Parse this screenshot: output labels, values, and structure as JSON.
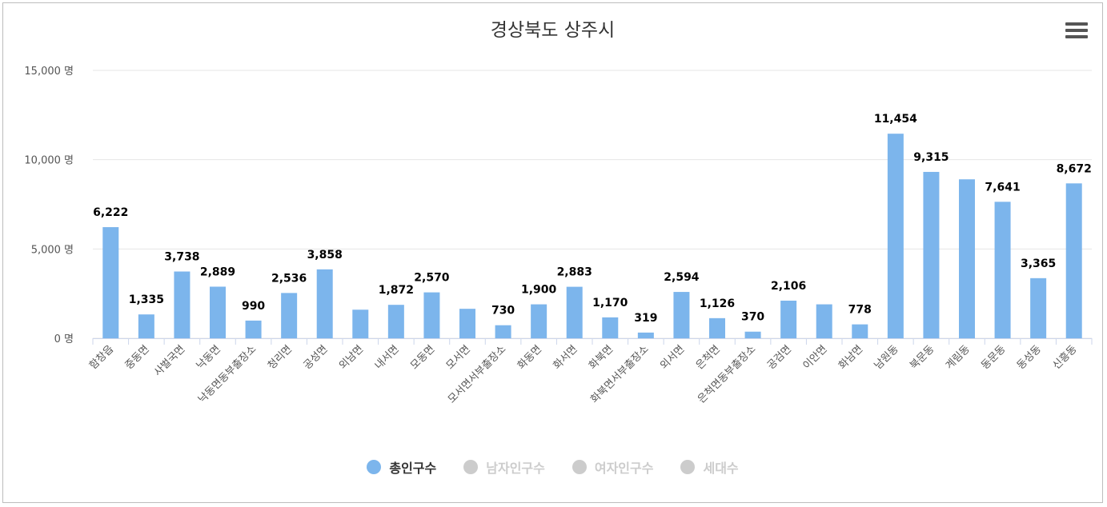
{
  "chart_data": {
    "type": "bar",
    "title": "경상북도 상주시",
    "y_unit": "명",
    "ylim": [
      0,
      15000
    ],
    "yticks": [
      0,
      5000,
      10000,
      15000
    ],
    "ytick_labels": [
      "0 명",
      "5,000 명",
      "10,000 명",
      "15,000 명"
    ],
    "grid": true,
    "legend_placement": "bottom-center",
    "categories": [
      "함창읍",
      "중동면",
      "사벌국면",
      "낙동면",
      "낙동면동부출장소",
      "청리면",
      "공성면",
      "외남면",
      "내서면",
      "모동면",
      "모서면",
      "모서면서부출장소",
      "화동면",
      "화서면",
      "화북면",
      "화북면서부출장소",
      "외서면",
      "은척면",
      "은척면동부출장소",
      "공검면",
      "이안면",
      "화남면",
      "남원동",
      "북문동",
      "계림동",
      "동문동",
      "동성동",
      "신흥동"
    ],
    "series": [
      {
        "name": "총인구수",
        "color": "#7cb5ec",
        "values": [
          6222,
          1335,
          3738,
          2889,
          990,
          2536,
          3858,
          1600,
          1872,
          2570,
          1650,
          730,
          1900,
          2883,
          1170,
          319,
          2594,
          1126,
          370,
          2106,
          1900,
          778,
          11454,
          9315,
          8900,
          7641,
          3365,
          8672
        ],
        "labels": [
          "6,222",
          "1,335",
          "3,738",
          "2,889",
          "990",
          "2,536",
          "3,858",
          "",
          "1,872",
          "2,570",
          "",
          "730",
          "1,900",
          "2,883",
          "1,170",
          "319",
          "2,594",
          "1,126",
          "370",
          "2,106",
          "",
          "778",
          "11,454",
          "9,315",
          "",
          "7,641",
          "3,365",
          "8,672"
        ]
      }
    ]
  },
  "legend": [
    {
      "label": "총인구수",
      "active": true,
      "color": "#7cb5ec"
    },
    {
      "label": "남자인구수",
      "active": false,
      "color": "#cccccc"
    },
    {
      "label": "여자인구수",
      "active": false,
      "color": "#cccccc"
    },
    {
      "label": "세대수",
      "active": false,
      "color": "#cccccc"
    }
  ],
  "menu_icon": "hamburger-menu-icon"
}
